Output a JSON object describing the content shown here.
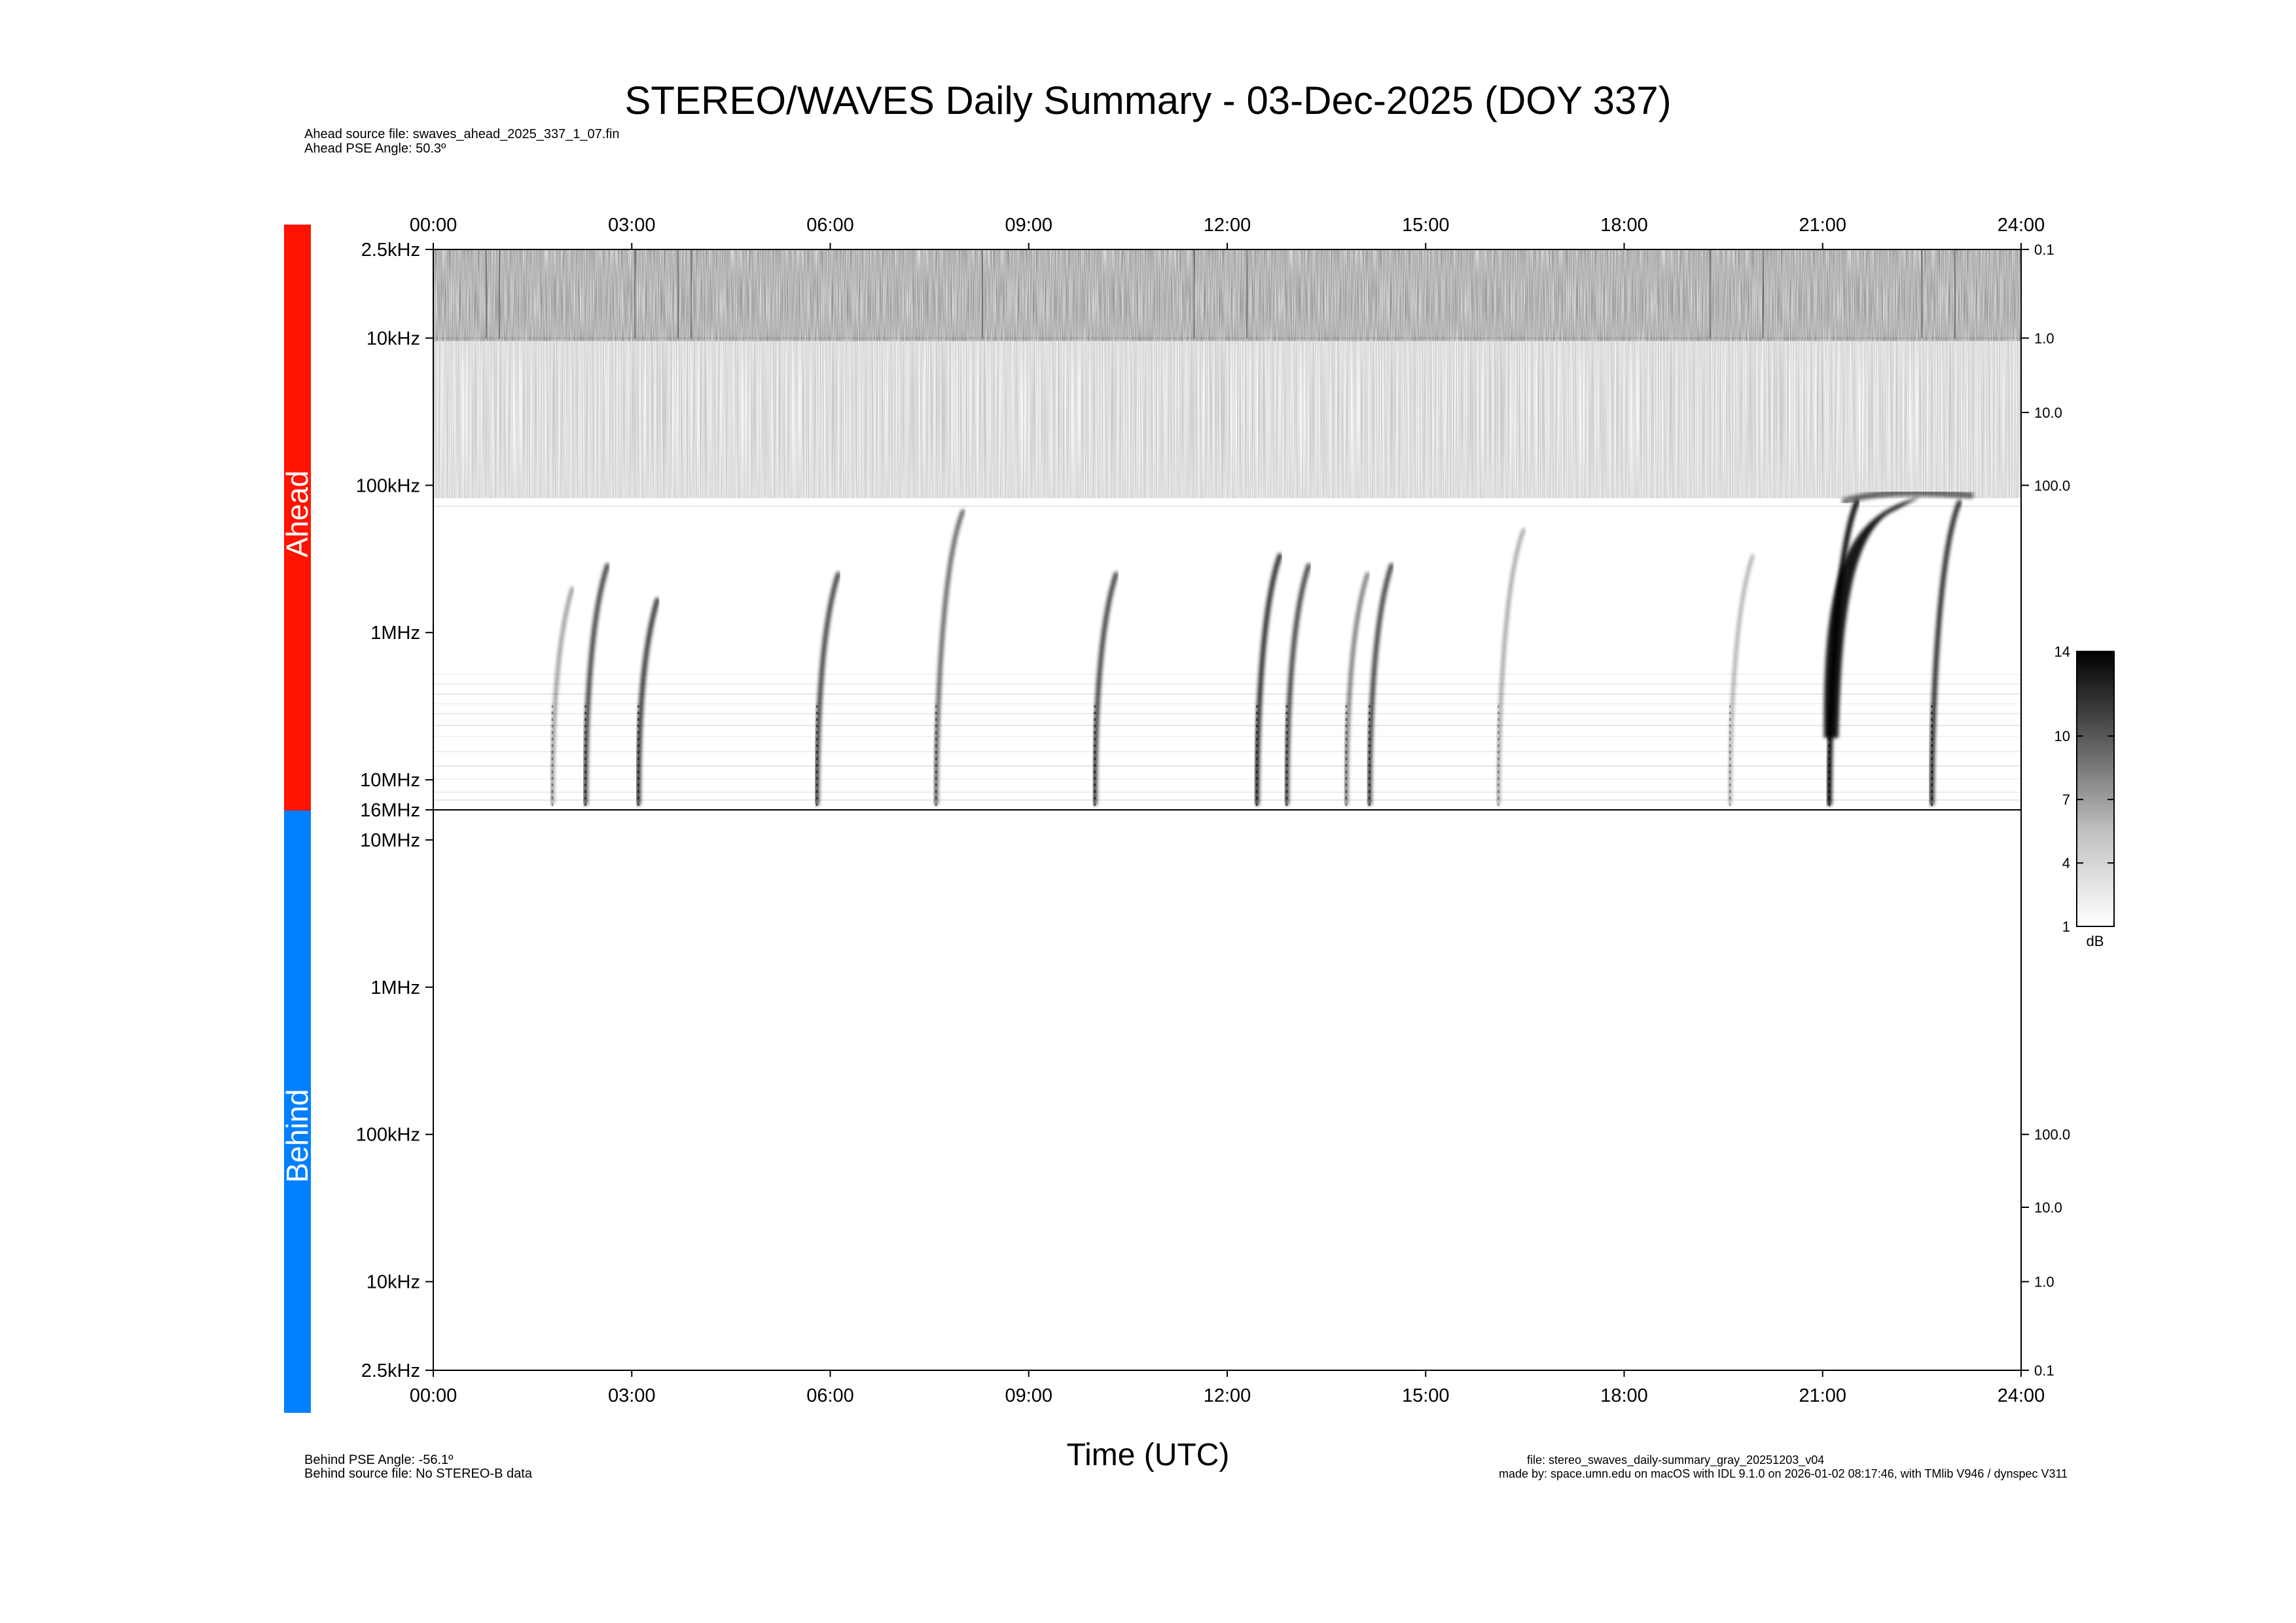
{
  "title": "STEREO/WAVES Daily Summary - 03-Dec-2025 (DOY 337)",
  "ahead_info": {
    "source_file": "Ahead source file: swaves_ahead_2025_337_1_07.fin",
    "pse_angle": "Ahead PSE Angle:   50.3º"
  },
  "behind_info": {
    "pse_angle": "Behind PSE Angle:  -56.1º",
    "source_file": "Behind source file: No STEREO-B data"
  },
  "footer": {
    "file": "file: stereo_swaves_daily-summary_gray_20251203_v04",
    "made_by": "made by: space.umn.edu on macOS with IDL 9.1.0 on 2026-01-02 08:17:46, with TMlib V946 / dynspec V311"
  },
  "panel_labels": {
    "ahead": "Ahead",
    "behind": "Behind"
  },
  "colors": {
    "ahead_bar": "#ff1300",
    "behind_bar": "#0080ff",
    "axis": "#000000",
    "background": "#ffffff"
  },
  "chart_data": {
    "type": "heatmap",
    "title": "STEREO/WAVES Daily Summary - 03-Dec-2025 (DOY 337)",
    "xlabel": "Time (UTC)",
    "x_ticks": [
      "00:00",
      "03:00",
      "06:00",
      "09:00",
      "12:00",
      "15:00",
      "18:00",
      "21:00",
      "24:00"
    ],
    "x_range_hours": [
      0,
      24
    ],
    "ahead": {
      "freq_ticks": [
        {
          "label": "2.5kHz",
          "khz": 2.5
        },
        {
          "label": "10kHz",
          "khz": 10
        },
        {
          "label": "100kHz",
          "khz": 100
        },
        {
          "label": "1MHz",
          "khz": 1000
        },
        {
          "label": "10MHz",
          "khz": 10000
        },
        {
          "label": "16MHz",
          "khz": 16000
        }
      ],
      "right_ticks": [
        {
          "label": "0.1",
          "khz": 2.5
        },
        {
          "label": "1.0",
          "khz": 10
        },
        {
          "label": "10.0",
          "khz": 32
        },
        {
          "label": "100.0",
          "khz": 100
        }
      ],
      "bursts": [
        {
          "start_h": 1.8,
          "peak_khz": 500,
          "intensity": 0.35
        },
        {
          "start_h": 2.3,
          "peak_khz": 350,
          "intensity": 0.75
        },
        {
          "start_h": 3.1,
          "peak_khz": 600,
          "intensity": 0.8
        },
        {
          "start_h": 5.8,
          "peak_khz": 400,
          "intensity": 0.75
        },
        {
          "start_h": 7.6,
          "peak_khz": 150,
          "intensity": 0.6
        },
        {
          "start_h": 10.0,
          "peak_khz": 400,
          "intensity": 0.75
        },
        {
          "start_h": 12.45,
          "peak_khz": 300,
          "intensity": 0.85
        },
        {
          "start_h": 12.9,
          "peak_khz": 350,
          "intensity": 0.75
        },
        {
          "start_h": 13.8,
          "peak_khz": 400,
          "intensity": 0.5
        },
        {
          "start_h": 14.15,
          "peak_khz": 350,
          "intensity": 0.75
        },
        {
          "start_h": 16.1,
          "peak_khz": 200,
          "intensity": 0.3
        },
        {
          "start_h": 19.6,
          "peak_khz": 300,
          "intensity": 0.25
        },
        {
          "start_h": 21.1,
          "peak_khz": 130,
          "intensity": 1.0
        },
        {
          "start_h": 22.65,
          "peak_khz": 130,
          "intensity": 0.85
        }
      ]
    },
    "behind": {
      "freq_ticks": [
        {
          "label": "10MHz",
          "khz": 10000
        },
        {
          "label": "1MHz",
          "khz": 1000
        },
        {
          "label": "100kHz",
          "khz": 100
        },
        {
          "label": "10kHz",
          "khz": 10
        },
        {
          "label": "2.5kHz",
          "khz": 2.5
        }
      ],
      "right_ticks": [
        {
          "label": "100.0",
          "khz": 100
        },
        {
          "label": "10.0",
          "khz": 32
        },
        {
          "label": "1.0",
          "khz": 10
        },
        {
          "label": "0.1",
          "khz": 2.5
        }
      ],
      "data": "No STEREO-B data"
    },
    "colorbar": {
      "label": "dB",
      "ticks": [
        {
          "label": "14",
          "value": 14
        },
        {
          "label": "10",
          "value": 10
        },
        {
          "label": "7",
          "value": 7
        },
        {
          "label": "4",
          "value": 4
        },
        {
          "label": "1",
          "value": 1
        }
      ],
      "range": [
        1,
        14
      ]
    }
  }
}
